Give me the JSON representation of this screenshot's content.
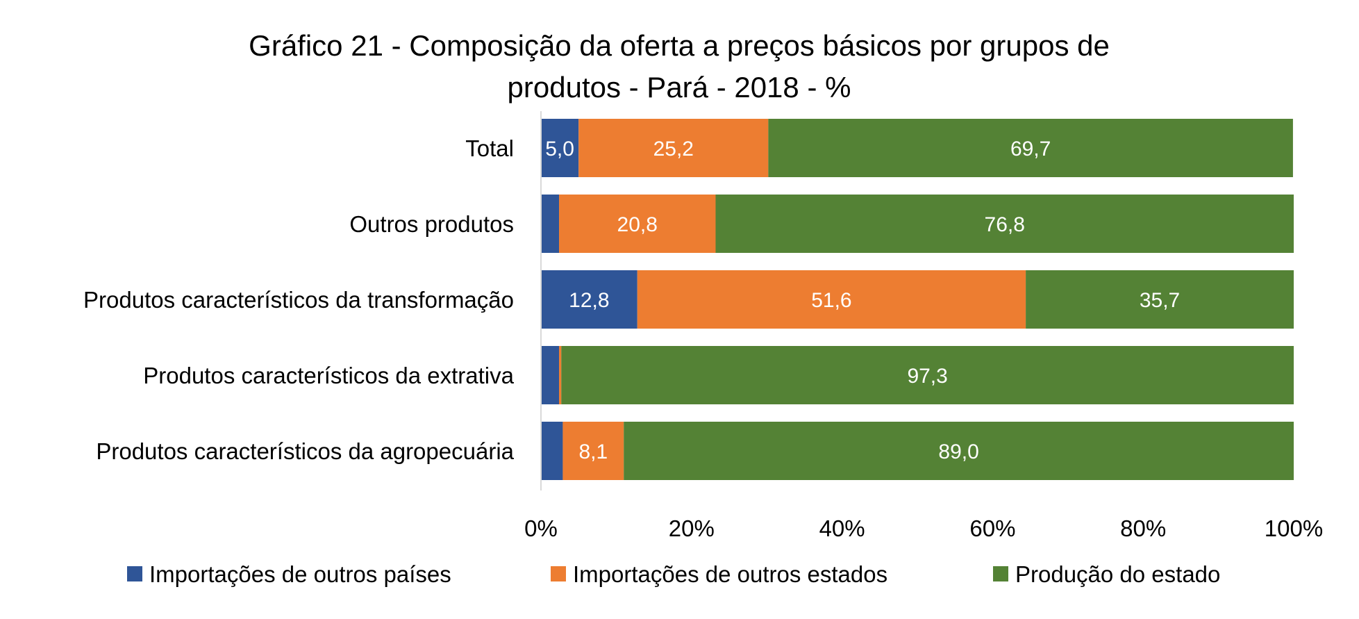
{
  "chart_data": {
    "type": "bar",
    "orientation": "horizontal",
    "stacked": "percent",
    "title": "Gráfico 21 - Composição da oferta a preços básicos por grupos de produtos - Pará - 2018 - %",
    "title_lines": [
      "Gráfico 21 - Composição da oferta a preços básicos por grupos de",
      "produtos - Pará - 2018 - %"
    ],
    "categories": [
      "Total",
      "Outros produtos",
      "Produtos característicos da transformação",
      "Produtos característicos da extrativa",
      "Produtos característicos da agropecuária"
    ],
    "series": [
      {
        "name": "Importações de outros países",
        "color": "#2F5597",
        "values": [
          5.0,
          2.4,
          12.8,
          2.4,
          2.9
        ],
        "labels": [
          "5,0",
          "",
          "12,8",
          "",
          ""
        ]
      },
      {
        "name": "Importações de outros estados",
        "color": "#ED7D31",
        "values": [
          25.2,
          20.8,
          51.6,
          0.3,
          8.1
        ],
        "labels": [
          "25,2",
          "20,8",
          "51,6",
          "",
          "8,1"
        ]
      },
      {
        "name": "Produção do estado",
        "color": "#548235",
        "values": [
          69.7,
          76.8,
          35.7,
          97.3,
          89.0
        ],
        "labels": [
          "69,7",
          "76,8",
          "35,7",
          "97,3",
          "89,0"
        ]
      }
    ],
    "xlim": [
      0,
      100
    ],
    "x_ticks": [
      0,
      20,
      40,
      60,
      80,
      100
    ],
    "x_tick_labels": [
      "0%",
      "20%",
      "40%",
      "60%",
      "80%",
      "100%"
    ],
    "xlabel": "",
    "ylabel": "",
    "grid": false,
    "legend_position": "bottom"
  }
}
